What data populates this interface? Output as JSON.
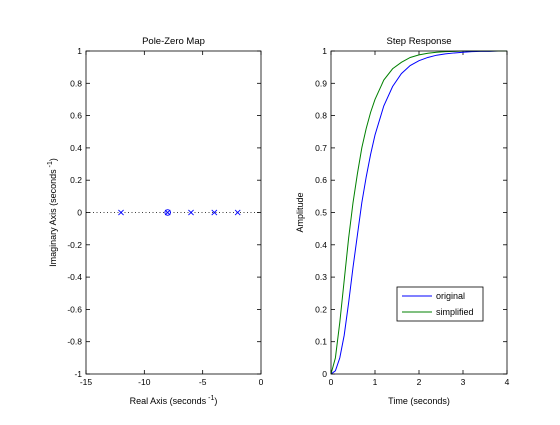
{
  "figure": {
    "background": "#ffffff"
  },
  "chart_data": [
    {
      "type": "scatter",
      "title": "Pole-Zero Map",
      "xlabel": "Real Axis (seconds",
      "xlabel_superscript": "-1",
      "ylabel": "Imaginary Axis (seconds",
      "ylabel_superscript": "-1",
      "xlim": [
        -15,
        0
      ],
      "ylim": [
        -1,
        1
      ],
      "xticks": [
        -15,
        -10,
        -5,
        0
      ],
      "xtick_labels": [
        "-15",
        "-10",
        "-5",
        "0"
      ],
      "yticks": [
        -1,
        -0.8,
        -0.6,
        -0.4,
        -0.2,
        0,
        0.2,
        0.4,
        0.6,
        0.8,
        1
      ],
      "ytick_labels": [
        "-1",
        "-0.8",
        "-0.6",
        "-0.4",
        "-0.2",
        "0",
        "0.2",
        "0.4",
        "0.6",
        "0.8",
        "1"
      ],
      "grid": false,
      "zero_line": {
        "style": "dotted",
        "color": "#000000"
      },
      "series": [
        {
          "marker": "x",
          "color": "#0000ff",
          "points": [
            [
              -12,
              0
            ],
            [
              -8,
              0
            ],
            [
              -6,
              0
            ],
            [
              -4,
              0
            ],
            [
              -2,
              0
            ]
          ]
        },
        {
          "marker": "o",
          "color": "#0000ff",
          "points": [
            [
              -8,
              0
            ]
          ]
        }
      ]
    },
    {
      "type": "line",
      "title": "Step Response",
      "xlabel": "Time (seconds)",
      "ylabel": "Amplitude",
      "xlim": [
        0,
        4
      ],
      "ylim": [
        0,
        1
      ],
      "xticks": [
        0,
        1,
        2,
        3,
        4
      ],
      "xtick_labels": [
        "0",
        "1",
        "2",
        "3",
        "4"
      ],
      "yticks": [
        0,
        0.1,
        0.2,
        0.3,
        0.4,
        0.5,
        0.6,
        0.7,
        0.8,
        0.9,
        1
      ],
      "ytick_labels": [
        "0",
        "0.1",
        "0.2",
        "0.3",
        "0.4",
        "0.5",
        "0.6",
        "0.7",
        "0.8",
        "0.9",
        "1"
      ],
      "grid": false,
      "legend": {
        "position": "bottom-right"
      },
      "x": [
        0,
        0.1,
        0.2,
        0.3,
        0.4,
        0.5,
        0.6,
        0.7,
        0.8,
        0.9,
        1.0,
        1.2,
        1.4,
        1.6,
        1.8,
        2.0,
        2.2,
        2.4,
        2.6,
        2.8,
        3.0,
        3.2,
        3.4,
        3.6,
        3.8,
        4.0
      ],
      "series": [
        {
          "name": "original",
          "color": "#0000ff",
          "values": [
            0,
            0.01,
            0.05,
            0.12,
            0.22,
            0.33,
            0.43,
            0.53,
            0.61,
            0.68,
            0.74,
            0.83,
            0.89,
            0.93,
            0.955,
            0.97,
            0.98,
            0.987,
            0.991,
            0.994,
            0.996,
            0.998,
            0.999,
            0.999,
            1.0,
            1.0
          ]
        },
        {
          "name": "simplified",
          "color": "#008000",
          "values": [
            0,
            0.05,
            0.16,
            0.29,
            0.42,
            0.53,
            0.62,
            0.7,
            0.76,
            0.81,
            0.85,
            0.91,
            0.945,
            0.965,
            0.98,
            0.988,
            0.993,
            0.996,
            0.998,
            0.999,
            1.0,
            1.0,
            1.0,
            1.0,
            1.0,
            1.0
          ]
        }
      ]
    }
  ]
}
